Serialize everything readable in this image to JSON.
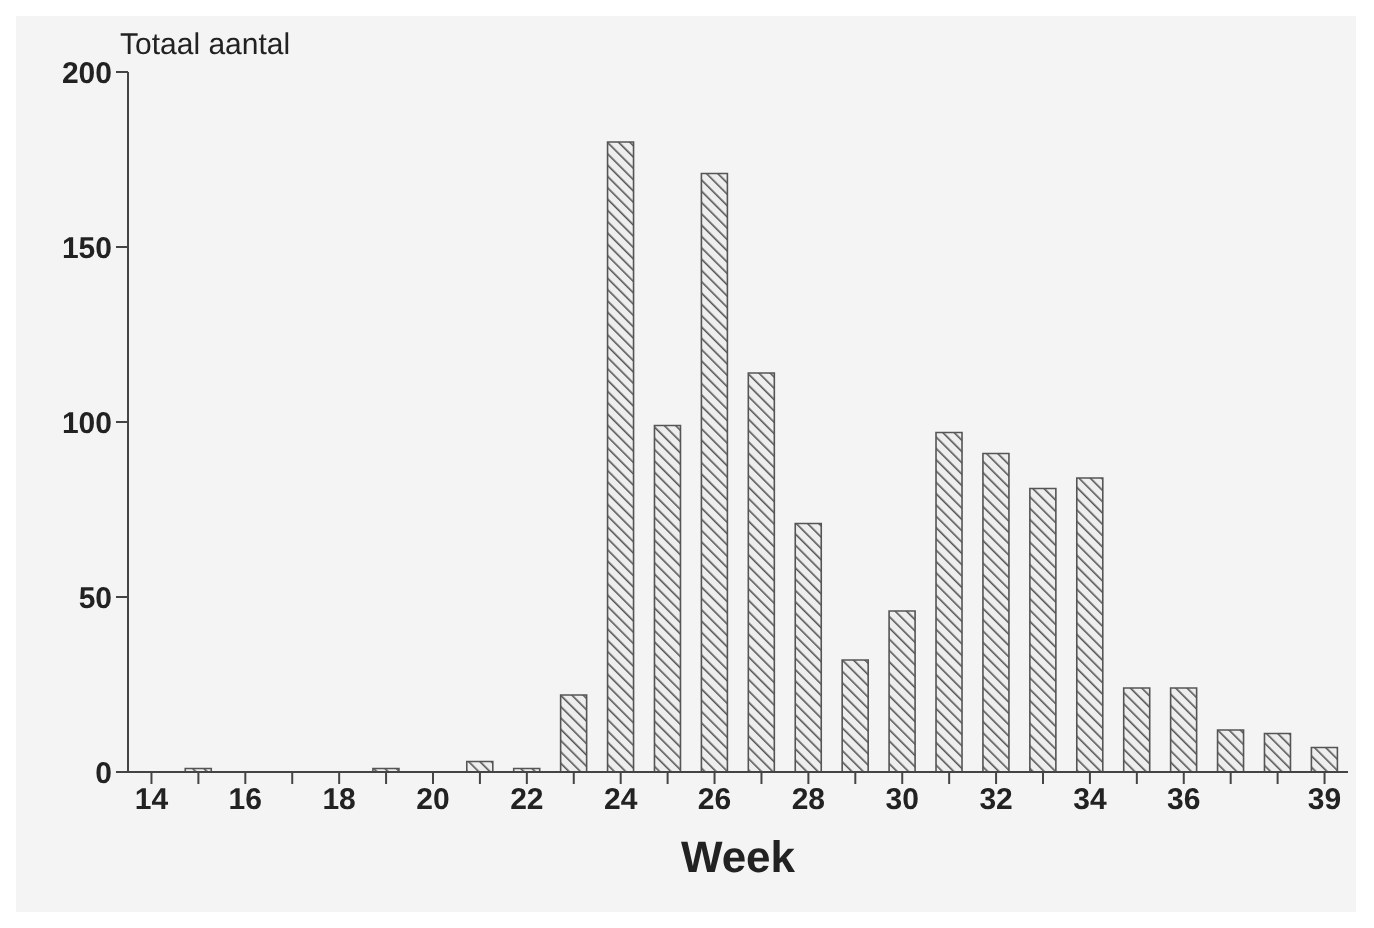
{
  "chart_data": {
    "type": "bar",
    "ylabel": "Totaal aantal",
    "xlabel": "Week",
    "categories": [
      "14",
      null,
      "16",
      null,
      "18",
      null,
      "20",
      null,
      "22",
      null,
      "24",
      null,
      "26",
      null,
      "28",
      null,
      "30",
      null,
      "32",
      null,
      "34",
      null,
      "36",
      null,
      null,
      "39"
    ],
    "values": [
      0,
      1,
      0,
      0,
      0,
      1,
      0,
      3,
      1,
      22,
      180,
      99,
      171,
      114,
      71,
      32,
      46,
      97,
      91,
      81,
      84,
      24,
      24,
      12,
      11,
      7
    ],
    "color": "#555555",
    "ylim": [
      0,
      200
    ],
    "yticks": [
      0,
      50,
      100,
      150,
      200
    ],
    "grid": false
  }
}
